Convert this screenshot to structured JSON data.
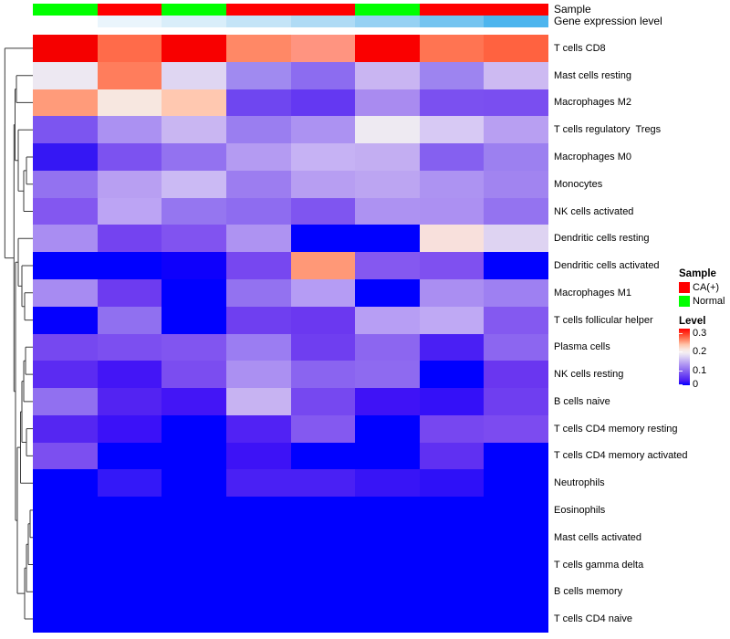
{
  "figure": {
    "background": "#FFFFFF",
    "n_columns": 8,
    "n_rows": 22
  },
  "annotations": {
    "rows": [
      {
        "label": "Sample",
        "values": [
          "Normal",
          "CA(+)",
          "Normal",
          "CA(+)",
          "CA(+)",
          "Normal",
          "CA(+)",
          "CA(+)"
        ],
        "colors": [
          "#00FF00",
          "#FF0000",
          "#00FF00",
          "#FF0000",
          "#FF0000",
          "#00FF00",
          "#FF0000",
          "#FF0000"
        ]
      },
      {
        "label": "Gene expression level",
        "colors": [
          "#FFFFFF",
          "#EAF5FC",
          "#D9EEFA",
          "#C4E4F7",
          "#AFDBF5",
          "#96D1F3",
          "#74C4F0",
          "#4DB5EE"
        ]
      }
    ]
  },
  "chart_data": {
    "type": "heatmap",
    "title": "",
    "columns": 8,
    "value_scale": {
      "name": "Level",
      "min": 0,
      "max": 0.3,
      "low_color": "#0000FF",
      "mid_color": "#FFFFFF",
      "high_color": "#FF0000"
    },
    "rows": [
      {
        "name": "T cells CD8",
        "colors": [
          "#F50000",
          "#FF6B4A",
          "#F80000",
          "#FF8866",
          "#FF9480",
          "#FA0000",
          "#FF7452",
          "#FF6240"
        ],
        "values": [
          0.31,
          0.27,
          0.31,
          0.25,
          0.24,
          0.31,
          0.26,
          0.27
        ]
      },
      {
        "name": "Mast cells resting",
        "colors": [
          "#EDE8F2",
          "#FF7D5C",
          "#DFD6F2",
          "#A08AF0",
          "#8C6CF0",
          "#C9B5F2",
          "#9D84F0",
          "#CDBAF2"
        ],
        "values": [
          0.13,
          0.26,
          0.12,
          0.09,
          0.07,
          0.11,
          0.085,
          0.11
        ]
      },
      {
        "name": "Macrophages M2",
        "colors": [
          "#FF9B7A",
          "#F7E7E0",
          "#FFC8B0",
          "#6F46F0",
          "#6438F2",
          "#A98BF0",
          "#7B50F0",
          "#7A4EF0"
        ],
        "values": [
          0.24,
          0.19,
          0.21,
          0.055,
          0.05,
          0.09,
          0.06,
          0.06
        ]
      },
      {
        "name": "T cells regulatory  Tregs",
        "colors": [
          "#7C55F0",
          "#AB91F2",
          "#C9B6F2",
          "#9A7EF0",
          "#AC92F2",
          "#EEEAF2",
          "#D7C9F4",
          "#B89FF2"
        ],
        "values": [
          0.065,
          0.09,
          0.11,
          0.08,
          0.09,
          0.13,
          0.115,
          0.1
        ]
      },
      {
        "name": "Macrophages M0",
        "colors": [
          "#3517F4",
          "#7C52F0",
          "#9372F0",
          "#B49BF2",
          "#C6B2F4",
          "#C3AEF2",
          "#8560F0",
          "#9C80F0"
        ],
        "values": [
          0.02,
          0.065,
          0.08,
          0.095,
          0.105,
          0.105,
          0.07,
          0.08
        ]
      },
      {
        "name": "Monocytes",
        "colors": [
          "#9372F0",
          "#B89FF2",
          "#CBBAF4",
          "#9C7DF0",
          "#B79EF2",
          "#BCA5F2",
          "#AD93F2",
          "#A184F0"
        ],
        "values": [
          0.08,
          0.1,
          0.11,
          0.08,
          0.1,
          0.1,
          0.09,
          0.085
        ]
      },
      {
        "name": "NK cells activated",
        "colors": [
          "#8357F0",
          "#BCA4F4",
          "#9576F0",
          "#8E6CF0",
          "#7F55F0",
          "#AD92F2",
          "#AC90F2",
          "#9473F0"
        ],
        "values": [
          0.07,
          0.1,
          0.08,
          0.075,
          0.065,
          0.09,
          0.09,
          0.08
        ]
      },
      {
        "name": "Dendritic cells resting",
        "colors": [
          "#A98DF2",
          "#7443F0",
          "#8153F0",
          "#AE93F2",
          "#0000FF",
          "#0000FF",
          "#F8E0DC",
          "#DED3F2"
        ],
        "values": [
          0.09,
          0.06,
          0.065,
          0.09,
          0,
          0,
          0.19,
          0.12
        ]
      },
      {
        "name": "Dendritic cells activated",
        "colors": [
          "#0000FF",
          "#0000FF",
          "#0E00FC",
          "#7747F0",
          "#FF9877",
          "#8558F0",
          "#7F50F0",
          "#0000FF"
        ],
        "values": [
          0,
          0,
          0.005,
          0.06,
          0.24,
          0.07,
          0.065,
          0
        ]
      },
      {
        "name": "Macrophages M1",
        "colors": [
          "#A78BF2",
          "#6D3BF0",
          "#0000FF",
          "#9372F0",
          "#B59CF4",
          "#0000FF",
          "#AA8EF2",
          "#9E80F2"
        ],
        "values": [
          0.09,
          0.055,
          0,
          0.08,
          0.095,
          0,
          0.09,
          0.08
        ]
      },
      {
        "name": "T cells follicular helper",
        "colors": [
          "#0500FE",
          "#9070F0",
          "#0000FF",
          "#6F3FF0",
          "#6B38F0",
          "#B79EF4",
          "#BFA9F4",
          "#8459F0"
        ],
        "values": [
          0.002,
          0.075,
          0,
          0.055,
          0.05,
          0.1,
          0.105,
          0.07
        ]
      },
      {
        "name": "Plasma cells",
        "colors": [
          "#7648F0",
          "#7C4FF0",
          "#8155F0",
          "#9B7DF2",
          "#6F3EF0",
          "#8C66F0",
          "#4A1FF4",
          "#8C66F0"
        ],
        "values": [
          0.06,
          0.065,
          0.065,
          0.08,
          0.055,
          0.07,
          0.035,
          0.07
        ]
      },
      {
        "name": "NK cells resting",
        "colors": [
          "#5B2BF2",
          "#4315F6",
          "#7B4DF0",
          "#AB90F2",
          "#8A64F0",
          "#8E6AF0",
          "#0000FF",
          "#6A36F0"
        ],
        "values": [
          0.045,
          0.03,
          0.065,
          0.09,
          0.07,
          0.07,
          0,
          0.05
        ]
      },
      {
        "name": "B cells naive",
        "colors": [
          "#9170F0",
          "#5323F2",
          "#4315F6",
          "#C7B3F2",
          "#7648F0",
          "#3F12F6",
          "#3410F8",
          "#6F3EF0"
        ],
        "values": [
          0.075,
          0.04,
          0.03,
          0.105,
          0.06,
          0.028,
          0.025,
          0.055
        ]
      },
      {
        "name": "T cells CD4 memory resting",
        "colors": [
          "#5526F2",
          "#3B11F8",
          "#0000FF",
          "#5122F4",
          "#8459F0",
          "#0000FF",
          "#7747F0",
          "#7C4BF0"
        ],
        "values": [
          0.04,
          0.027,
          0,
          0.038,
          0.07,
          0,
          0.06,
          0.06
        ]
      },
      {
        "name": "T cells CD4 memory activated",
        "colors": [
          "#7C4FF0",
          "#0000FF",
          "#0000FF",
          "#3D12F6",
          "#0000FF",
          "#0000FF",
          "#6030F2",
          "#0000FF"
        ],
        "values": [
          0.065,
          0,
          0,
          0.028,
          0,
          0,
          0.045,
          0
        ]
      },
      {
        "name": "Neutrophils",
        "colors": [
          "#0000FF",
          "#3418F8",
          "#0000FF",
          "#4A20F4",
          "#4A20F4",
          "#3814F6",
          "#2E10F8",
          "#0000FF"
        ],
        "values": [
          0,
          0.024,
          0,
          0.033,
          0.033,
          0.027,
          0.022,
          0
        ]
      },
      {
        "name": "Eosinophils",
        "colors": [
          "#0000FF",
          "#0000FF",
          "#0000FF",
          "#0000FF",
          "#0000FF",
          "#0000FF",
          "#0000FF",
          "#0000FF"
        ],
        "values": [
          0,
          0,
          0,
          0,
          0,
          0,
          0,
          0
        ]
      },
      {
        "name": "Mast cells activated",
        "colors": [
          "#0000FF",
          "#0000FF",
          "#0000FF",
          "#0000FF",
          "#0000FF",
          "#0000FF",
          "#0000FF",
          "#0000FF"
        ],
        "values": [
          0,
          0,
          0,
          0,
          0,
          0,
          0,
          0
        ]
      },
      {
        "name": "T cells gamma delta",
        "colors": [
          "#0000FF",
          "#0000FF",
          "#0000FF",
          "#0000FF",
          "#0000FF",
          "#0000FF",
          "#0000FF",
          "#0000FF"
        ],
        "values": [
          0,
          0,
          0,
          0,
          0,
          0,
          0,
          0
        ]
      },
      {
        "name": "B cells memory",
        "colors": [
          "#0000FF",
          "#0000FF",
          "#0000FF",
          "#0000FF",
          "#0000FF",
          "#0000FF",
          "#0000FF",
          "#0000FF"
        ],
        "values": [
          0,
          0,
          0,
          0,
          0,
          0,
          0,
          0
        ]
      },
      {
        "name": "T cells CD4 naive",
        "colors": [
          "#0000FF",
          "#0000FF",
          "#0000FF",
          "#0000FF",
          "#0000FF",
          "#0000FF",
          "#0000FF",
          "#0000FF"
        ],
        "values": [
          0,
          0,
          0,
          0,
          0,
          0,
          0,
          0
        ]
      }
    ]
  },
  "legend": {
    "sample": {
      "title": "Sample",
      "items": [
        {
          "label": "CA(+)",
          "color": "#FF0000"
        },
        {
          "label": "Normal",
          "color": "#00FF00"
        }
      ]
    },
    "level": {
      "title": "Level",
      "ticks": [
        {
          "label": "0.3",
          "offset": 5
        },
        {
          "label": "0.2",
          "offset": 25
        },
        {
          "label": "0.1",
          "offset": 46
        },
        {
          "label": "0",
          "offset": 61
        }
      ]
    }
  }
}
